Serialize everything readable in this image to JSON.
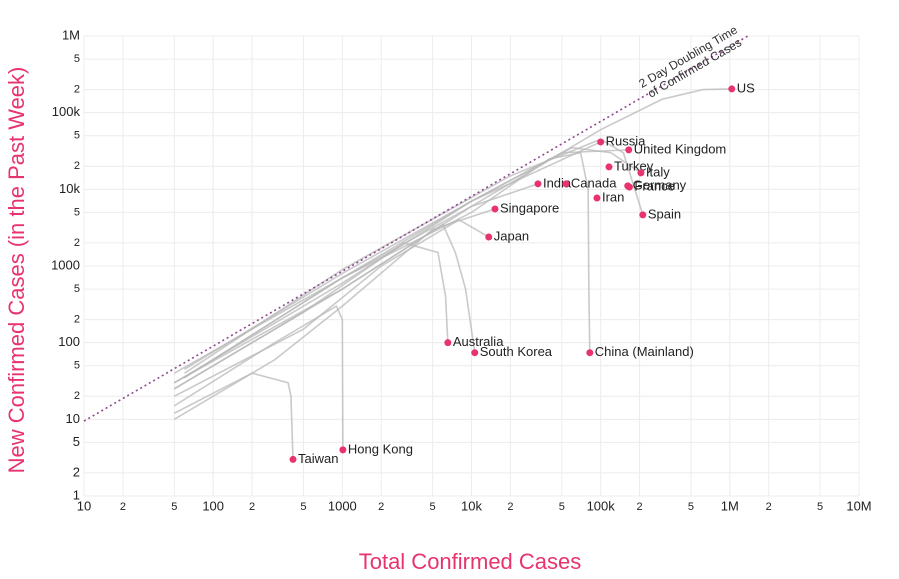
{
  "chart_data": {
    "type": "scatter",
    "xlabel": "Total Confirmed Cases",
    "ylabel": "New Confirmed Cases (in the Past Week)",
    "log_x": true,
    "log_y": true,
    "grid": true,
    "xlim": [
      10,
      10000000
    ],
    "ylim": [
      1,
      1000000
    ],
    "xticks": [
      10,
      {
        "value": 20,
        "label": "2"
      },
      {
        "value": 50,
        "label": "5"
      },
      100,
      {
        "value": 200,
        "label": "2"
      },
      {
        "value": 500,
        "label": "5"
      },
      1000,
      {
        "value": 2000,
        "label": "2"
      },
      {
        "value": 5000,
        "label": "5"
      },
      {
        "value": 10000,
        "label": "10k"
      },
      {
        "value": 20000,
        "label": "2"
      },
      {
        "value": 50000,
        "label": "5"
      },
      {
        "value": 100000,
        "label": "100k"
      },
      {
        "value": 200000,
        "label": "2"
      },
      {
        "value": 500000,
        "label": "5"
      },
      {
        "value": 1000000,
        "label": "1M"
      },
      {
        "value": 2000000,
        "label": "2"
      },
      {
        "value": 5000000,
        "label": "5"
      },
      {
        "value": 10000000,
        "label": "10M"
      }
    ],
    "yticks": [
      1,
      2,
      5,
      10,
      {
        "value": 20,
        "label": "2"
      },
      {
        "value": 50,
        "label": "5"
      },
      100,
      {
        "value": 200,
        "label": "2"
      },
      {
        "value": 500,
        "label": "5"
      },
      1000,
      {
        "value": 2000,
        "label": "2"
      },
      {
        "value": 5000,
        "label": "5"
      },
      {
        "value": 10000,
        "label": "10k"
      },
      {
        "value": 20000,
        "label": "2"
      },
      {
        "value": 50000,
        "label": "5"
      },
      {
        "value": 100000,
        "label": "100k"
      },
      {
        "value": 200000,
        "label": "2"
      },
      {
        "value": 500000,
        "label": "5"
      },
      {
        "value": 1000000,
        "label": "1M"
      }
    ],
    "color": "#e8336d",
    "line_color": "#b8b8b8",
    "reference": {
      "label": [
        "2 Day Doubling Time",
        "of Confirmed Cases"
      ],
      "x": [
        10,
        1380000
      ],
      "y": [
        9.5,
        1000000
      ],
      "color": "#8e4a8e"
    },
    "points": {
      "names": [
        "US",
        "Russia",
        "United Kingdom",
        "Turkey",
        "Italy",
        "Germany",
        "France",
        "India",
        "Canada",
        "Iran",
        "Spain",
        "Singapore",
        "Japan",
        "Australia",
        "South Korea",
        "China (Mainland)",
        "Hong Kong",
        "Taiwan"
      ],
      "x": [
        1035000,
        100000,
        165000,
        116000,
        205000,
        162000,
        167000,
        32700,
        53800,
        93600,
        212000,
        15200,
        13600,
        6560,
        10600,
        82400,
        1010,
        415
      ],
      "values": [
        204000,
        41500,
        32700,
        19600,
        16400,
        11100,
        10700,
        11800,
        11800,
        7700,
        4640,
        5550,
        2390,
        100,
        74,
        74,
        4,
        3
      ]
    },
    "trajectories": [
      {
        "x": [
          60,
          1000,
          10000,
          100000,
          300000,
          620000,
          1035000
        ],
        "y": [
          35,
          700,
          6000,
          60000,
          150000,
          200000,
          204000
        ]
      },
      {
        "x": [
          50,
          1000,
          10000,
          40000,
          70000,
          80000,
          81000,
          82400
        ],
        "y": [
          40,
          700,
          5000,
          25000,
          30000,
          10000,
          500,
          74
        ]
      },
      {
        "x": [
          50,
          1000,
          6000,
          7500,
          9000,
          10600
        ],
        "y": [
          30,
          500,
          3500,
          1500,
          500,
          74
        ]
      },
      {
        "x": [
          50,
          300,
          900,
          1000,
          1010
        ],
        "y": [
          15,
          100,
          300,
          200,
          4
        ]
      },
      {
        "x": [
          50,
          200,
          380,
          400,
          415
        ],
        "y": [
          12,
          40,
          30,
          20,
          3
        ]
      },
      {
        "x": [
          60,
          1000,
          10000,
          60000,
          120000,
          205000
        ],
        "y": [
          45,
          800,
          7000,
          35000,
          30000,
          16400
        ]
      },
      {
        "x": [
          60,
          1000,
          20000,
          100000,
          150000,
          212000
        ],
        "y": [
          40,
          900,
          15000,
          45000,
          30000,
          4640
        ]
      },
      {
        "x": [
          60,
          1000,
          10000,
          50000,
          165000
        ],
        "y": [
          35,
          700,
          7000,
          30000,
          32700
        ]
      },
      {
        "x": [
          50,
          1000,
          10000,
          100000
        ],
        "y": [
          30,
          600,
          7000,
          41500
        ]
      },
      {
        "x": [
          50,
          500,
          2000,
          8000,
          13600
        ],
        "y": [
          20,
          150,
          1000,
          4000,
          2390
        ]
      },
      {
        "x": [
          50,
          500,
          3000,
          5500,
          6300,
          6560
        ],
        "y": [
          25,
          250,
          2000,
          1500,
          400,
          100
        ]
      },
      {
        "x": [
          50,
          300,
          1000,
          5000,
          15200
        ],
        "y": [
          10,
          60,
          300,
          3000,
          5550
        ]
      },
      {
        "x": [
          50,
          1000,
          10000,
          32700
        ],
        "y": [
          25,
          500,
          6000,
          11800
        ]
      }
    ]
  }
}
